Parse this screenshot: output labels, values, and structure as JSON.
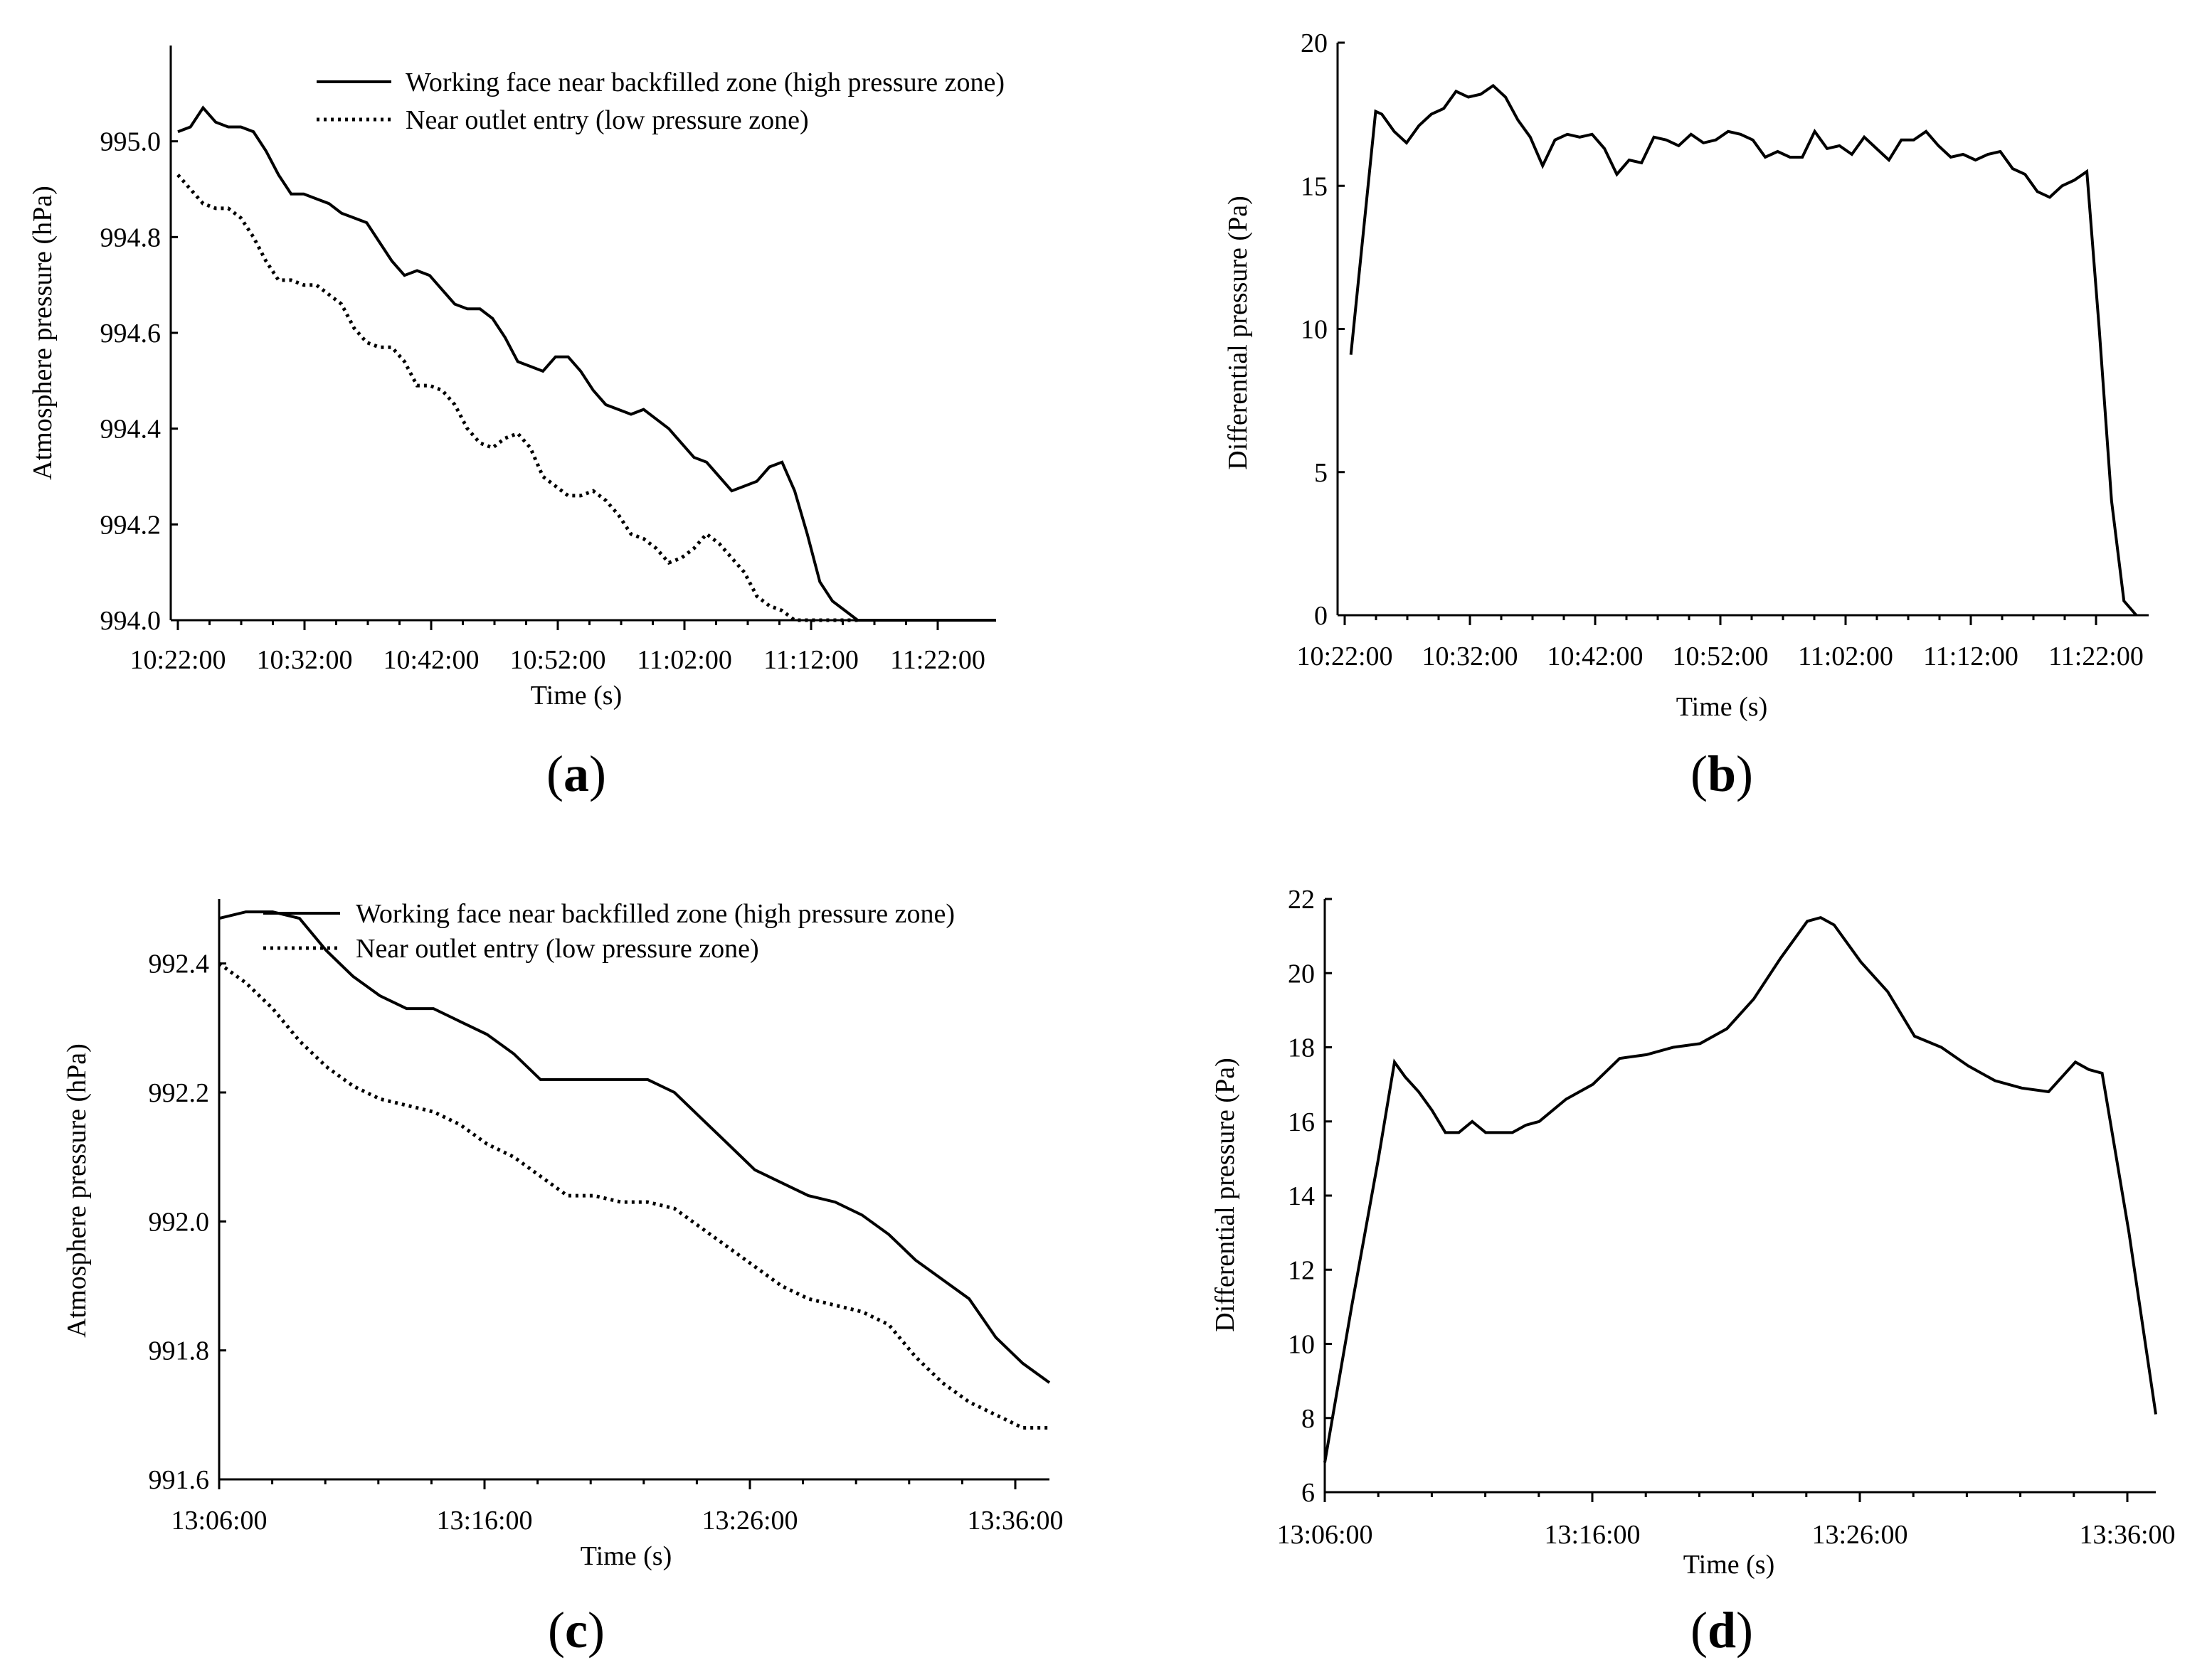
{
  "chart_data": [
    {
      "id": "a",
      "panel_label": "a",
      "type": "line",
      "xlabel": "Time (s)",
      "ylabel": "Atmosphere pressure (hPa)",
      "categories": [
        "10:22:00",
        "10:32:00",
        "10:42:00",
        "10:52:00",
        "11:02:00",
        "11:12:00",
        "11:22:00"
      ],
      "xlim": [
        0,
        65
      ],
      "ylim": [
        994.0,
        995.2
      ],
      "yticks": [
        994.0,
        994.2,
        994.4,
        994.6,
        994.8,
        995.0
      ],
      "ytick_labels": [
        "994.0",
        "994.2",
        "994.4",
        "994.6",
        "994.8",
        "995.0"
      ],
      "legend": "top-right",
      "series": [
        {
          "name": "Working face near backfilled zone (high pressure zone)",
          "style": "solid",
          "x": [
            0,
            1,
            2,
            3,
            4,
            5,
            6,
            7,
            8,
            9,
            10,
            11,
            12,
            13,
            14,
            15,
            16,
            17,
            18,
            19,
            20,
            21,
            22,
            23,
            24,
            25,
            26,
            27,
            28,
            29,
            30,
            31,
            32,
            33,
            34,
            35,
            36,
            37,
            38,
            39,
            40,
            41,
            42,
            43,
            44,
            45,
            46,
            47,
            48,
            49,
            50,
            51,
            52,
            53,
            54,
            55,
            56,
            57,
            58,
            59,
            60,
            61,
            62,
            63,
            64,
            65
          ],
          "values": [
            995.02,
            995.03,
            995.07,
            995.04,
            995.03,
            995.03,
            995.02,
            994.98,
            994.93,
            994.89,
            994.89,
            994.88,
            994.87,
            994.85,
            994.84,
            994.83,
            994.79,
            994.75,
            994.72,
            994.73,
            994.72,
            994.69,
            994.66,
            994.65,
            994.65,
            994.63,
            994.59,
            994.54,
            994.53,
            994.52,
            994.55,
            994.55,
            994.52,
            994.48,
            994.45,
            994.44,
            994.43,
            994.44,
            994.42,
            994.4,
            994.37,
            994.34,
            994.33,
            994.3,
            994.27,
            994.28,
            994.29,
            994.32,
            994.33,
            994.27,
            994.18,
            994.08,
            994.04,
            994.02,
            994.0,
            994.0,
            994.0,
            994.0,
            994.0,
            994.0,
            994.0,
            994.0,
            994.0,
            994.0,
            994.0,
            994.0
          ]
        },
        {
          "name": "Near outlet entry (low pressure zone)",
          "style": "dotted",
          "x": [
            0,
            1,
            2,
            3,
            4,
            5,
            6,
            7,
            8,
            9,
            10,
            11,
            12,
            13,
            14,
            15,
            16,
            17,
            18,
            19,
            20,
            21,
            22,
            23,
            24,
            25,
            26,
            27,
            28,
            29,
            30,
            31,
            32,
            33,
            34,
            35,
            36,
            37,
            38,
            39,
            40,
            41,
            42,
            43,
            44,
            45,
            46,
            47,
            48,
            49,
            50,
            51,
            52,
            53,
            54
          ],
          "values": [
            994.93,
            994.9,
            994.87,
            994.86,
            994.86,
            994.84,
            994.8,
            994.75,
            994.71,
            994.71,
            994.7,
            994.7,
            994.68,
            994.66,
            994.61,
            994.58,
            994.57,
            994.57,
            994.54,
            994.49,
            994.49,
            994.48,
            994.45,
            994.4,
            994.37,
            994.36,
            994.38,
            994.39,
            994.36,
            994.3,
            994.28,
            994.26,
            994.26,
            994.27,
            994.25,
            994.22,
            994.18,
            994.17,
            994.15,
            994.12,
            994.13,
            994.15,
            994.18,
            994.16,
            994.13,
            994.1,
            994.05,
            994.03,
            994.02,
            994.0,
            994.0,
            994.0,
            994.0,
            994.0,
            994.0
          ]
        }
      ]
    },
    {
      "id": "b",
      "panel_label": "b",
      "type": "line",
      "xlabel": "Time (s)",
      "ylabel": "Differential pressure  (Pa)",
      "categories": [
        "10:22:00",
        "10:32:00",
        "10:42:00",
        "10:52:00",
        "11:02:00",
        "11:12:00",
        "11:22:00"
      ],
      "xlim": [
        0,
        65
      ],
      "ylim": [
        0,
        20
      ],
      "yticks": [
        0,
        5,
        10,
        15,
        20
      ],
      "ytick_labels": [
        "0",
        "5",
        "10",
        "15",
        "20"
      ],
      "series": [
        {
          "name": "Differential pressure",
          "style": "solid",
          "x": [
            0.5,
            2.5,
            3,
            4,
            5,
            6,
            7,
            8,
            9,
            10,
            11,
            12,
            13,
            14,
            15,
            16,
            17,
            18,
            19,
            20,
            21,
            22,
            23,
            24,
            25,
            26,
            27,
            28,
            29,
            30,
            31,
            32,
            33,
            34,
            35,
            36,
            37,
            38,
            39,
            40,
            41,
            42,
            43,
            44,
            45,
            46,
            47,
            48,
            49,
            50,
            51,
            52,
            53,
            54,
            55,
            56,
            57,
            58,
            59,
            60,
            61,
            62,
            63,
            63.6,
            64
          ],
          "values": [
            9.1,
            17.6,
            17.5,
            16.9,
            16.5,
            17.1,
            17.5,
            17.7,
            18.3,
            18.1,
            18.2,
            18.5,
            18.1,
            17.3,
            16.7,
            15.7,
            16.6,
            16.8,
            16.7,
            16.8,
            16.3,
            15.4,
            15.9,
            15.8,
            16.7,
            16.6,
            16.4,
            16.8,
            16.5,
            16.6,
            16.9,
            16.8,
            16.6,
            16.0,
            16.2,
            16.0,
            16.0,
            16.9,
            16.3,
            16.4,
            16.1,
            16.7,
            16.3,
            15.9,
            16.6,
            16.6,
            16.9,
            16.4,
            16.0,
            16.1,
            15.9,
            16.1,
            16.2,
            15.6,
            15.4,
            14.8,
            14.6,
            15.0,
            15.2,
            15.5,
            10.0,
            4.0,
            0.5,
            0.2,
            0.0
          ]
        }
      ]
    },
    {
      "id": "c",
      "panel_label": "c",
      "type": "line",
      "xlabel": "Time (s)",
      "ylabel": "Atmosphere pressure (hPa)",
      "categories": [
        "13:06:00",
        "13:16:00",
        "13:26:00",
        "13:36:00"
      ],
      "xlim": [
        0,
        31
      ],
      "ylim": [
        991.6,
        992.5
      ],
      "yticks": [
        991.6,
        991.8,
        992.0,
        992.2,
        992.4
      ],
      "ytick_labels": [
        "991.6",
        "991.8",
        "992.0",
        "992.2",
        "992.4"
      ],
      "legend": "top-right",
      "series": [
        {
          "name": "Working face near backfilled zone (high pressure zone)",
          "style": "solid",
          "x": [
            0,
            1,
            2,
            3,
            4,
            5,
            6,
            7,
            8,
            9,
            10,
            11,
            12,
            13,
            14,
            15,
            16,
            17,
            18,
            19,
            20,
            21,
            22,
            23,
            24,
            25,
            26,
            27,
            28,
            29,
            30,
            31
          ],
          "values": [
            992.47,
            992.48,
            992.48,
            992.47,
            992.42,
            992.38,
            992.35,
            992.33,
            992.33,
            992.31,
            992.29,
            992.26,
            992.22,
            992.22,
            992.22,
            992.22,
            992.22,
            992.2,
            992.16,
            992.12,
            992.08,
            992.06,
            992.04,
            992.03,
            992.01,
            991.98,
            991.94,
            991.91,
            991.88,
            991.82,
            991.78,
            991.75
          ]
        },
        {
          "name": "Near outlet entry (low pressure zone)",
          "style": "dotted",
          "x": [
            0,
            1,
            2,
            3,
            4,
            5,
            6,
            7,
            8,
            9,
            10,
            11,
            12,
            13,
            14,
            15,
            16,
            17,
            18,
            19,
            20,
            21,
            22,
            23,
            24,
            25,
            26,
            27,
            28,
            29,
            30,
            31
          ],
          "values": [
            992.4,
            992.37,
            992.33,
            992.28,
            992.24,
            992.21,
            992.19,
            992.18,
            992.17,
            992.15,
            992.12,
            992.1,
            992.07,
            992.04,
            992.04,
            992.03,
            992.03,
            992.02,
            991.99,
            991.96,
            991.93,
            991.9,
            991.88,
            991.87,
            991.86,
            991.84,
            991.79,
            991.75,
            991.72,
            991.7,
            991.68,
            991.68
          ]
        }
      ]
    },
    {
      "id": "d",
      "panel_label": "d",
      "type": "line",
      "xlabel": "Time (s)",
      "ylabel": "Differential pressure (Pa)",
      "categories": [
        "13:06:00",
        "13:16:00",
        "13:26:00",
        "13:36:00"
      ],
      "xlim": [
        0,
        31
      ],
      "ylim": [
        6,
        22
      ],
      "yticks": [
        6,
        8,
        10,
        12,
        14,
        16,
        18,
        20,
        22
      ],
      "ytick_labels": [
        "6",
        "8",
        "10",
        "12",
        "14",
        "16",
        "18",
        "20",
        "22"
      ],
      "series": [
        {
          "name": "Differential pressure",
          "style": "solid",
          "x": [
            0,
            1,
            2,
            2.6,
            3,
            3.5,
            4,
            4.5,
            5,
            5.5,
            6,
            6.5,
            7,
            7.5,
            8,
            9,
            10,
            11,
            12,
            13,
            14,
            15,
            16,
            17,
            18,
            18.5,
            19,
            20,
            21,
            22,
            23,
            24,
            25,
            26,
            27,
            27.5,
            28,
            28.5,
            29,
            30,
            31
          ],
          "values": [
            6.8,
            11.0,
            15.0,
            17.6,
            17.2,
            16.8,
            16.3,
            15.7,
            15.7,
            16.0,
            15.7,
            15.7,
            15.7,
            15.9,
            16.0,
            16.6,
            17.0,
            17.7,
            17.8,
            18.0,
            18.1,
            18.5,
            19.3,
            20.4,
            21.4,
            21.5,
            21.3,
            20.3,
            19.5,
            18.3,
            18.0,
            17.5,
            17.1,
            16.9,
            16.8,
            17.2,
            17.6,
            17.4,
            17.3,
            13.0,
            8.1
          ]
        }
      ]
    }
  ]
}
